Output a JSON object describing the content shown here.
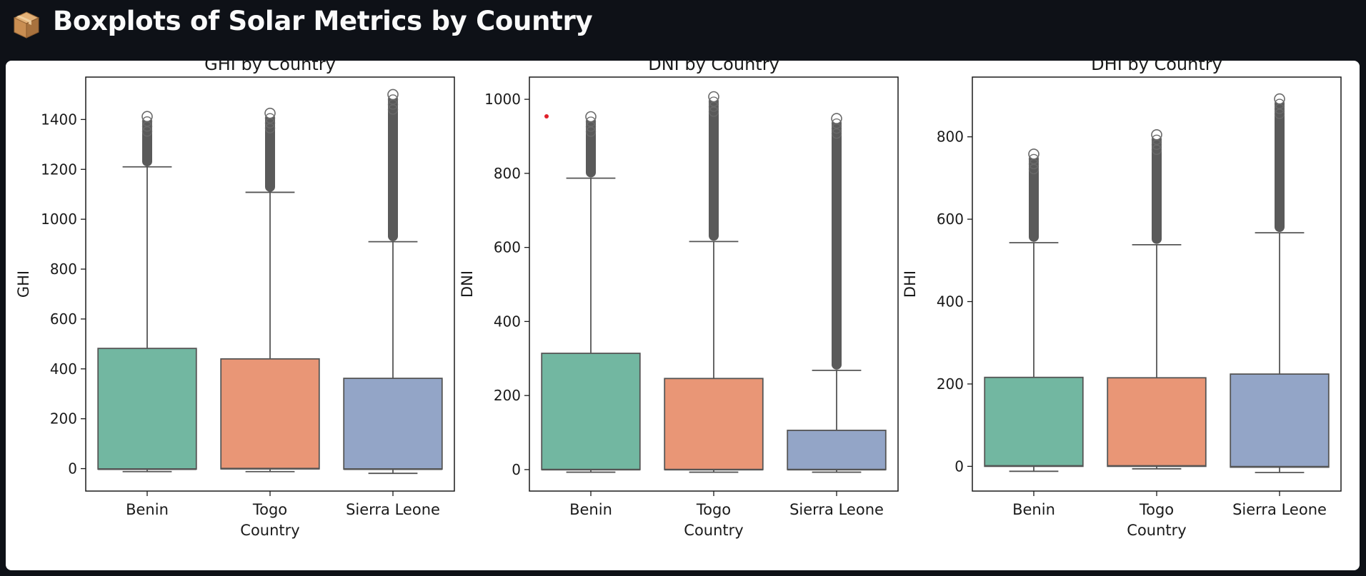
{
  "page": {
    "title": "Boxplots of Solar Metrics by Country",
    "icon": "package-icon"
  },
  "colors": {
    "background": "#0e1117",
    "panel": "#ffffff",
    "title_text": "#fafafa",
    "marker": "#e0202a",
    "box_edge": "#555555",
    "outlier_dense": "#5a5a5a",
    "outlier_ring": "#6a6a6a"
  },
  "chart_data": [
    {
      "type": "boxplot",
      "title": "GHI by Country",
      "xlabel": "Country",
      "ylabel": "GHI",
      "ylim": [
        -90,
        1570
      ],
      "yticks": [
        0,
        200,
        400,
        600,
        800,
        1000,
        1200,
        1400
      ],
      "categories": [
        "Benin",
        "Togo",
        "Sierra Leone"
      ],
      "colors": [
        "#72b7a1",
        "#e99676",
        "#93a5c7"
      ],
      "boxes": [
        {
          "whislo": -12,
          "q1": -2,
          "med": -2,
          "q3": 482,
          "whishi": 1210,
          "outliers_from": 1212,
          "outliers_to": 1412
        },
        {
          "whislo": -12,
          "q1": -1,
          "med": 0,
          "q3": 440,
          "whishi": 1108,
          "outliers_from": 1110,
          "outliers_to": 1425
        },
        {
          "whislo": -19,
          "q1": -2,
          "med": -2,
          "q3": 362,
          "whishi": 910,
          "outliers_from": 912,
          "outliers_to": 1500
        }
      ]
    },
    {
      "type": "boxplot",
      "title": "DNI by Country",
      "xlabel": "Country",
      "ylabel": "DNI",
      "ylim": [
        -58,
        1060
      ],
      "yticks": [
        0,
        200,
        400,
        600,
        800,
        1000
      ],
      "categories": [
        "Benin",
        "Togo",
        "Sierra Leone"
      ],
      "colors": [
        "#72b7a1",
        "#e99676",
        "#93a5c7"
      ],
      "boxes": [
        {
          "whislo": -7,
          "q1": 0,
          "med": 0,
          "q3": 314,
          "whishi": 787,
          "outliers_from": 789,
          "outliers_to": 953
        },
        {
          "whislo": -7,
          "q1": 0,
          "med": 0,
          "q3": 246,
          "whishi": 616,
          "outliers_from": 618,
          "outliers_to": 1007
        },
        {
          "whislo": -7,
          "q1": 0,
          "med": 0,
          "q3": 106,
          "whishi": 268,
          "outliers_from": 270,
          "outliers_to": 948
        }
      ]
    },
    {
      "type": "boxplot",
      "title": "DHI by Country",
      "xlabel": "Country",
      "ylabel": "DHI",
      "ylim": [
        -60,
        945
      ],
      "yticks": [
        0,
        200,
        400,
        600,
        800
      ],
      "categories": [
        "Benin",
        "Togo",
        "Sierra Leone"
      ],
      "colors": [
        "#72b7a1",
        "#e99676",
        "#93a5c7"
      ],
      "boxes": [
        {
          "whislo": -12,
          "q1": 0,
          "med": 1,
          "q3": 216,
          "whishi": 543,
          "outliers_from": 545,
          "outliers_to": 758
        },
        {
          "whislo": -6,
          "q1": 0,
          "med": 1,
          "q3": 215,
          "whishi": 538,
          "outliers_from": 540,
          "outliers_to": 805
        },
        {
          "whislo": -15,
          "q1": -2,
          "med": -1,
          "q3": 224,
          "whishi": 567,
          "outliers_from": 569,
          "outliers_to": 892
        }
      ]
    }
  ]
}
